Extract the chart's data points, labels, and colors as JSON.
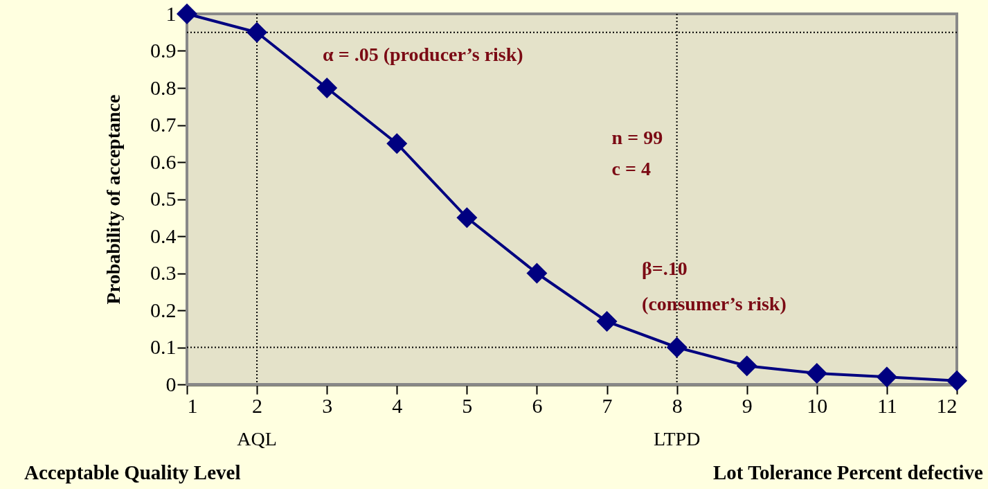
{
  "chart_data": {
    "type": "line",
    "ylabel": "Probability of acceptance",
    "x": [
      1,
      2,
      3,
      4,
      5,
      6,
      7,
      8,
      9,
      10,
      11,
      12
    ],
    "series": [
      {
        "color": "#000080",
        "values": [
          1.0,
          0.95,
          0.8,
          0.65,
          0.45,
          0.3,
          0.17,
          0.1,
          0.05,
          0.03,
          0.02,
          0.01
        ]
      }
    ],
    "xlim": [
      1,
      12
    ],
    "xticks": [
      1,
      2,
      3,
      4,
      5,
      6,
      7,
      8,
      9,
      10,
      11,
      12
    ],
    "ylim": [
      0,
      1
    ],
    "yticks": [
      0,
      0.1,
      0.2,
      0.3,
      0.4,
      0.5,
      0.6,
      0.7,
      0.8,
      0.9,
      1
    ],
    "marker": "diamond",
    "line_style": "solid",
    "ref_lines": [
      {
        "axis": "x",
        "value": 2,
        "line_style": "dotted"
      },
      {
        "axis": "x",
        "value": 8,
        "line_style": "dotted"
      },
      {
        "axis": "y",
        "value": 0.95,
        "line_style": "dotted"
      },
      {
        "axis": "y",
        "value": 0.1,
        "line_style": "dotted"
      }
    ],
    "annotations": [
      "α = .05 (producer’s risk)",
      "n = 99",
      "c = 4",
      "β=.10",
      "(consumer’s risk)",
      "AQL",
      "LTPD",
      "Acceptable Quality Level",
      "Lot Tolerance Percent defective"
    ]
  }
}
